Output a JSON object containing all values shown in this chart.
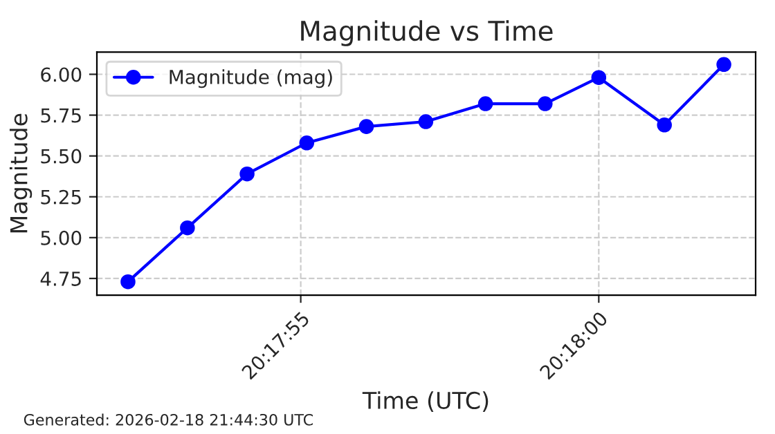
{
  "chart_data": {
    "type": "line",
    "title": "Magnitude vs Time",
    "xlabel": "Time (UTC)",
    "ylabel": "Magnitude",
    "x": [
      20.297806,
      20.298083,
      20.298361,
      20.298639,
      20.298917,
      20.299194,
      20.299472,
      20.29975,
      20.3,
      20.300306,
      20.300583
    ],
    "series": [
      {
        "name": "Magnitude (mag)",
        "color": "#0000ff",
        "values": [
          4.73,
          5.06,
          5.39,
          5.58,
          5.68,
          5.71,
          5.82,
          5.82,
          5.98,
          5.69,
          6.06
        ]
      }
    ],
    "xlim": [
      20.297661,
      20.300731
    ],
    "xticks": [
      {
        "value": 20.2986111,
        "label": "20:17:55"
      },
      {
        "value": 20.3,
        "label": "20:18:00"
      }
    ],
    "ylim": [
      4.648,
      6.136
    ],
    "yticks": [
      {
        "value": 4.75,
        "label": "4.75"
      },
      {
        "value": 5.0,
        "label": "5.00"
      },
      {
        "value": 5.25,
        "label": "5.25"
      },
      {
        "value": 5.5,
        "label": "5.50"
      },
      {
        "value": 5.75,
        "label": "5.75"
      },
      {
        "value": 6.0,
        "label": "6.00"
      }
    ],
    "grid": true,
    "legend": "top left",
    "marker": "circle",
    "line_style": "solid",
    "annotations": [
      "Generated: 2026-02-18 21:44:30 UTC"
    ]
  }
}
